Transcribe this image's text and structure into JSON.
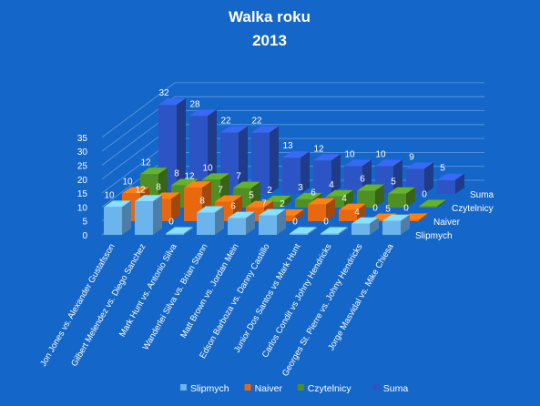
{
  "chart_data": {
    "type": "bar",
    "title": "Walka roku",
    "subtitle": "2013",
    "categories": [
      "Jon Jones vs. Alexander Gustafsson",
      "Gilbert Melendez vs. Diego Sanchez",
      "Mark Hunt vs. Antonio Silva",
      "Wanderlei Silva vs. Brian Stann",
      "Matt Brown vs. Jordan Mein",
      "Edson Barboza vs. Danny Castillo",
      "Junior Dos Santos vs Mark Hunt",
      "Carlos Condit vs Johny Hendricks",
      "Georges St. Pierre vs. Johny Hendricks",
      "Jorge Masvidal vs. Mike Chiesa"
    ],
    "series": [
      {
        "name": "Slipmych",
        "values": [
          10,
          12,
          0,
          8,
          6,
          7,
          0,
          0,
          4,
          5
        ]
      },
      {
        "name": "Naiver",
        "values": [
          10,
          8,
          12,
          7,
          5,
          2,
          6,
          4,
          0,
          0
        ]
      },
      {
        "name": "Czytelnicy",
        "values": [
          12,
          8,
          10,
          7,
          2,
          3,
          4,
          6,
          5,
          0
        ]
      },
      {
        "name": "Suma",
        "values": [
          32,
          28,
          22,
          22,
          13,
          12,
          10,
          10,
          9,
          5
        ]
      }
    ],
    "y_ticks": [
      0,
      5,
      10,
      15,
      20,
      25,
      30,
      35
    ],
    "ylim": [
      0,
      35
    ],
    "legend_position": "bottom",
    "colors": {
      "background": "#1466c8",
      "Slipmych": "#6cb4ee",
      "Naiver": "#e8670f",
      "Czytelnicy": "#4f8f24",
      "Suma": "#2d54c4",
      "text": "#ffffff"
    }
  }
}
